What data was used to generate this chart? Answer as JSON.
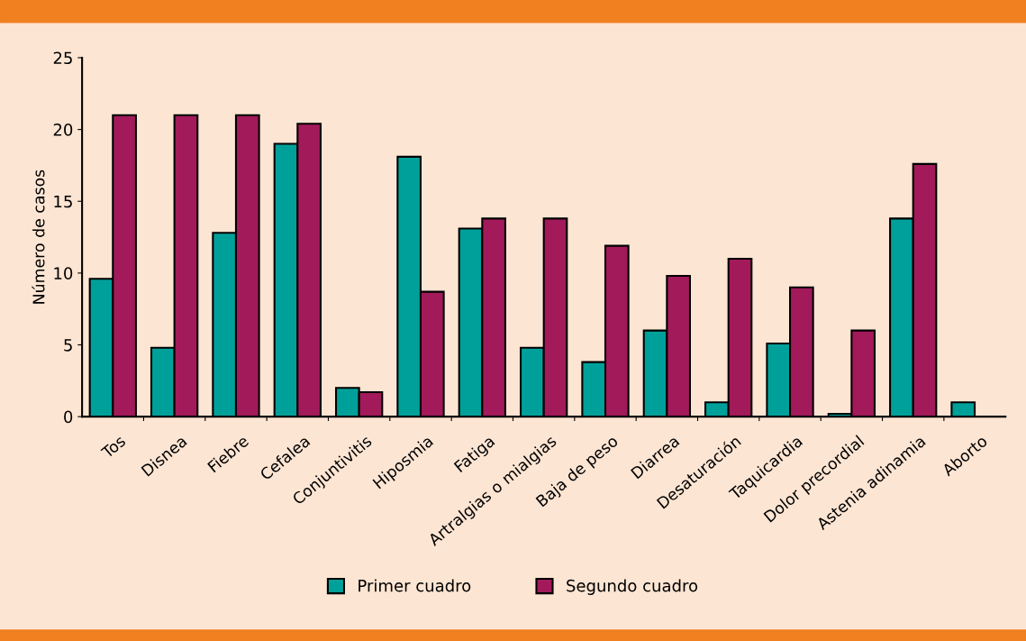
{
  "chart_data": {
    "type": "bar",
    "ylabel": "Número de casos",
    "categories": [
      "Tos",
      "Disnea",
      "Fiebre",
      "Cefalea",
      "Conjuntivitis",
      "Hiposmia",
      "Fatiga",
      "Artralgias o mialgias",
      "Baja de peso",
      "Diarrea",
      "Desaturación",
      "Taquicardia",
      "Dolor precordial",
      "Astenia adinamia",
      "Aborto"
    ],
    "series": [
      {
        "name": "Primer cuadro",
        "color": "#00a09a",
        "values": [
          9.6,
          4.8,
          12.8,
          19.0,
          2.0,
          18.1,
          13.1,
          4.8,
          3.8,
          6.0,
          1.0,
          5.1,
          0.2,
          13.8,
          1.0
        ]
      },
      {
        "name": "Segundo cuadro",
        "color": "#a21a5a",
        "values": [
          21.0,
          21.0,
          21.0,
          20.4,
          1.7,
          8.7,
          13.8,
          13.8,
          11.9,
          9.8,
          11.0,
          9.0,
          6.0,
          17.6,
          null
        ]
      }
    ],
    "ylim": [
      0,
      25
    ],
    "yticks": [
      0,
      5,
      10,
      15,
      20,
      25
    ],
    "grid": false,
    "legend": "bottom"
  }
}
